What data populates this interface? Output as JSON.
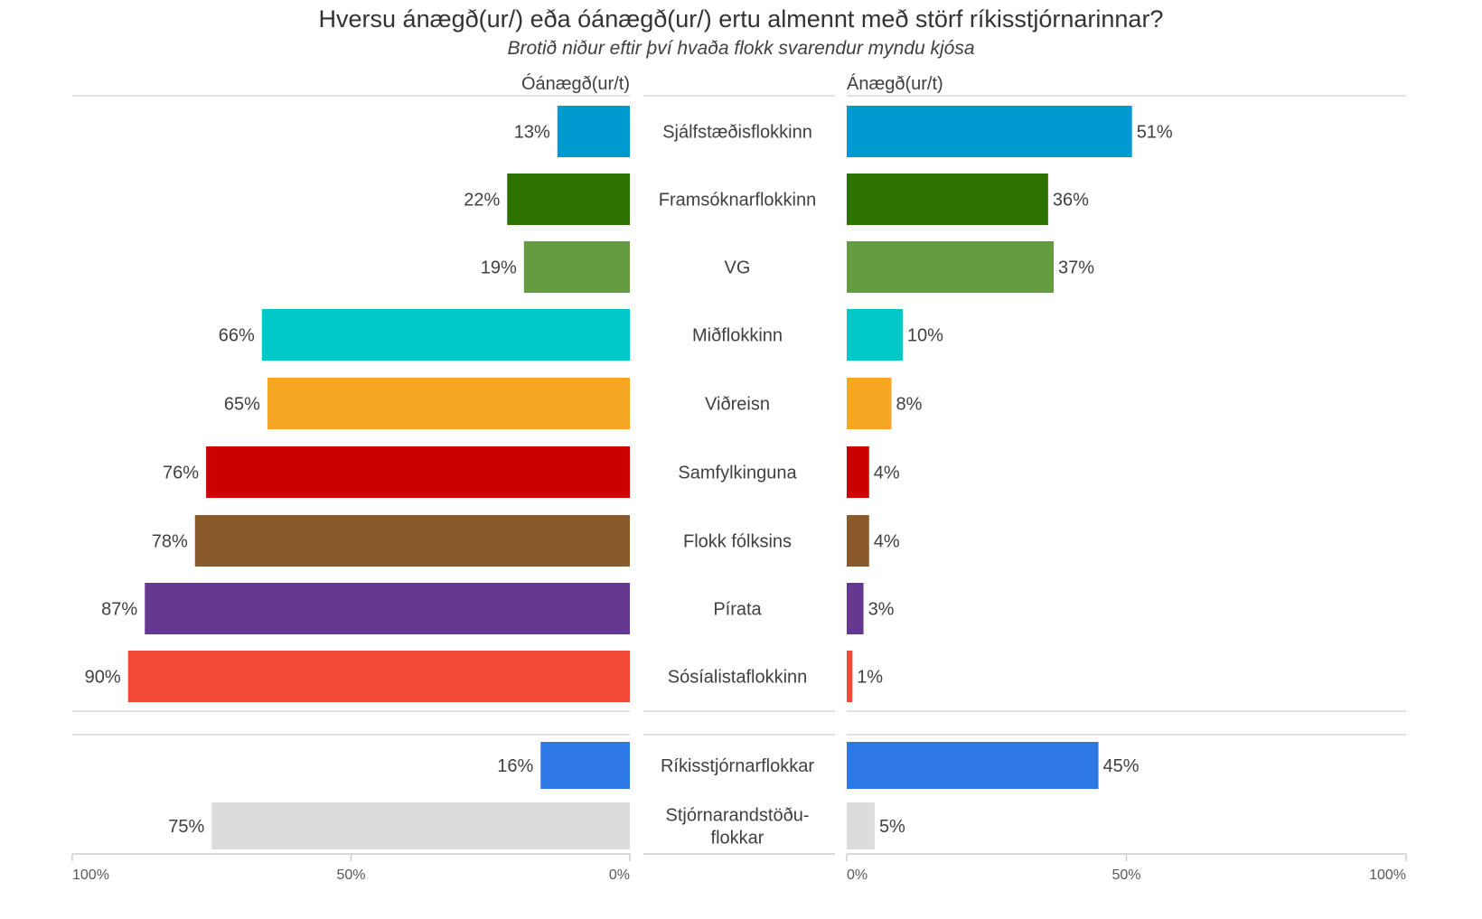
{
  "chart_data": {
    "type": "bar",
    "title": "Hversu ánægð(ur/) eða óánægð(ur/) ertu almennt með störf ríkisstjórnarinnar?",
    "subtitle": "Brotið niður eftir því hvaða flokk svarendur myndu kjósa",
    "left_header": "Óánægð(ur/t)",
    "right_header": "Ánægð(ur/t)",
    "groups": [
      {
        "categories": [
          [
            "Sjálfstæðisflokkinn"
          ],
          [
            "Framsóknarflokkinn"
          ],
          [
            "VG"
          ],
          [
            "Miðflokkinn"
          ],
          [
            "Viðreisn"
          ],
          [
            "Samfylkinguna"
          ],
          [
            "Flokk fólksins"
          ],
          [
            "Pírata"
          ],
          [
            "Sósíalistaflokkinn"
          ]
        ],
        "colors": [
          "#0099d0",
          "#2e7300",
          "#659c41",
          "#00c8c8",
          "#f5a623",
          "#cc0000",
          "#8b5a2b",
          "#663990",
          "#f04a37"
        ],
        "dissatisfied": [
          13,
          22,
          19,
          66,
          65,
          76,
          78,
          87,
          90
        ],
        "satisfied": [
          51,
          36,
          37,
          10,
          8,
          4,
          4,
          3,
          1
        ],
        "dissatisfied_labels": [
          "13%",
          "22%",
          "19%",
          "66%",
          "65%",
          "76%",
          "78%",
          "87%",
          "90%"
        ],
        "satisfied_labels": [
          "51%",
          "36%",
          "37%",
          "10%",
          "8%",
          "4%",
          "4%",
          "3%",
          "1%"
        ]
      },
      {
        "categories": [
          [
            "Ríkisstjórnarflokkar"
          ],
          [
            "Stjórnarandstöðu-",
            "flokkar"
          ]
        ],
        "colors": [
          "#2e78e6",
          "#dcdcdc"
        ],
        "dissatisfied": [
          16,
          75
        ],
        "satisfied": [
          45,
          5
        ],
        "dissatisfied_labels": [
          "16%",
          "75%"
        ],
        "satisfied_labels": [
          "45%",
          "5%"
        ]
      }
    ],
    "left_axis": {
      "range": [
        100,
        0
      ],
      "ticks": [
        "100%",
        "50%",
        "0%"
      ]
    },
    "right_axis": {
      "range": [
        0,
        100
      ],
      "ticks": [
        "0%",
        "50%",
        "100%"
      ]
    },
    "grid": false,
    "legend": "none"
  }
}
